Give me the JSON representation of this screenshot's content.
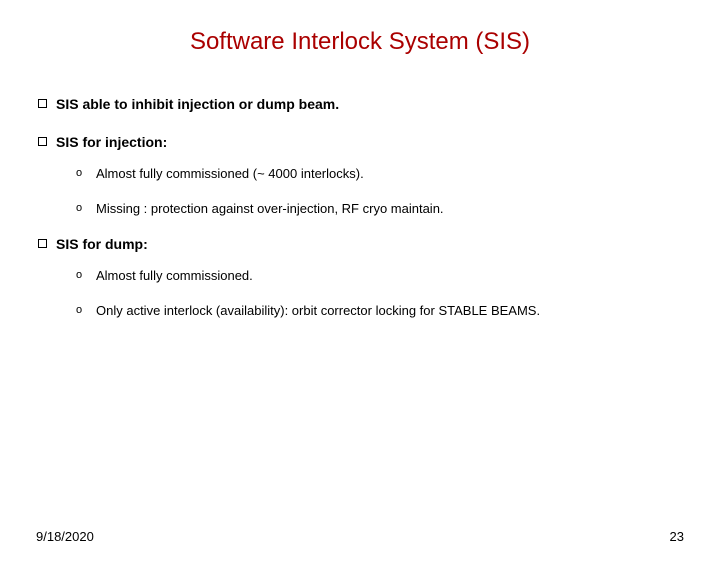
{
  "title": {
    "text": "Software Interlock System (SIS)",
    "color": "#aa0000",
    "fontsize": 24
  },
  "body_fontsize": 14,
  "sub_fontsize": 13,
  "sub_bullet_fontsize": 11,
  "footer_fontsize": 13,
  "items": [
    {
      "text": "SIS able to inhibit injection or dump beam.",
      "sub": []
    },
    {
      "text": "SIS for injection:",
      "sub": [
        "Almost fully commissioned (~ 4000 interlocks).",
        "Missing : protection against over-injection, RF cryo maintain."
      ]
    },
    {
      "text": "SIS for dump:",
      "sub": [
        "Almost fully commissioned.",
        "Only active interlock (availability): orbit corrector locking for STABLE BEAMS."
      ]
    }
  ],
  "footer": {
    "date": "9/18/2020",
    "page": "23"
  }
}
